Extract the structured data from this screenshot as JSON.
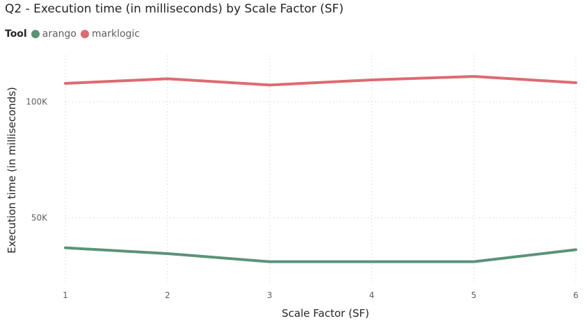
{
  "chart_data": {
    "type": "line",
    "title": "Q2 - Execution time (in milliseconds) by Scale Factor (SF)",
    "legend_title": "Tool",
    "legend_position": "top-left",
    "xlabel": "Scale Factor (SF)",
    "ylabel": "Execution time (in milliseconds)",
    "x": [
      1,
      2,
      3,
      4,
      5,
      6
    ],
    "ylim": [
      21000,
      120000
    ],
    "yticks": [
      50000,
      100000
    ],
    "ytick_labels": [
      "50K",
      "100K"
    ],
    "grid": true,
    "series": [
      {
        "name": "arango",
        "color": "#5b9378",
        "values": [
          37000,
          34500,
          31000,
          31000,
          31000,
          36200
        ]
      },
      {
        "name": "marklogic",
        "color": "#dd6b71",
        "values": [
          108000,
          110000,
          107300,
          109500,
          111000,
          108300
        ]
      }
    ]
  }
}
